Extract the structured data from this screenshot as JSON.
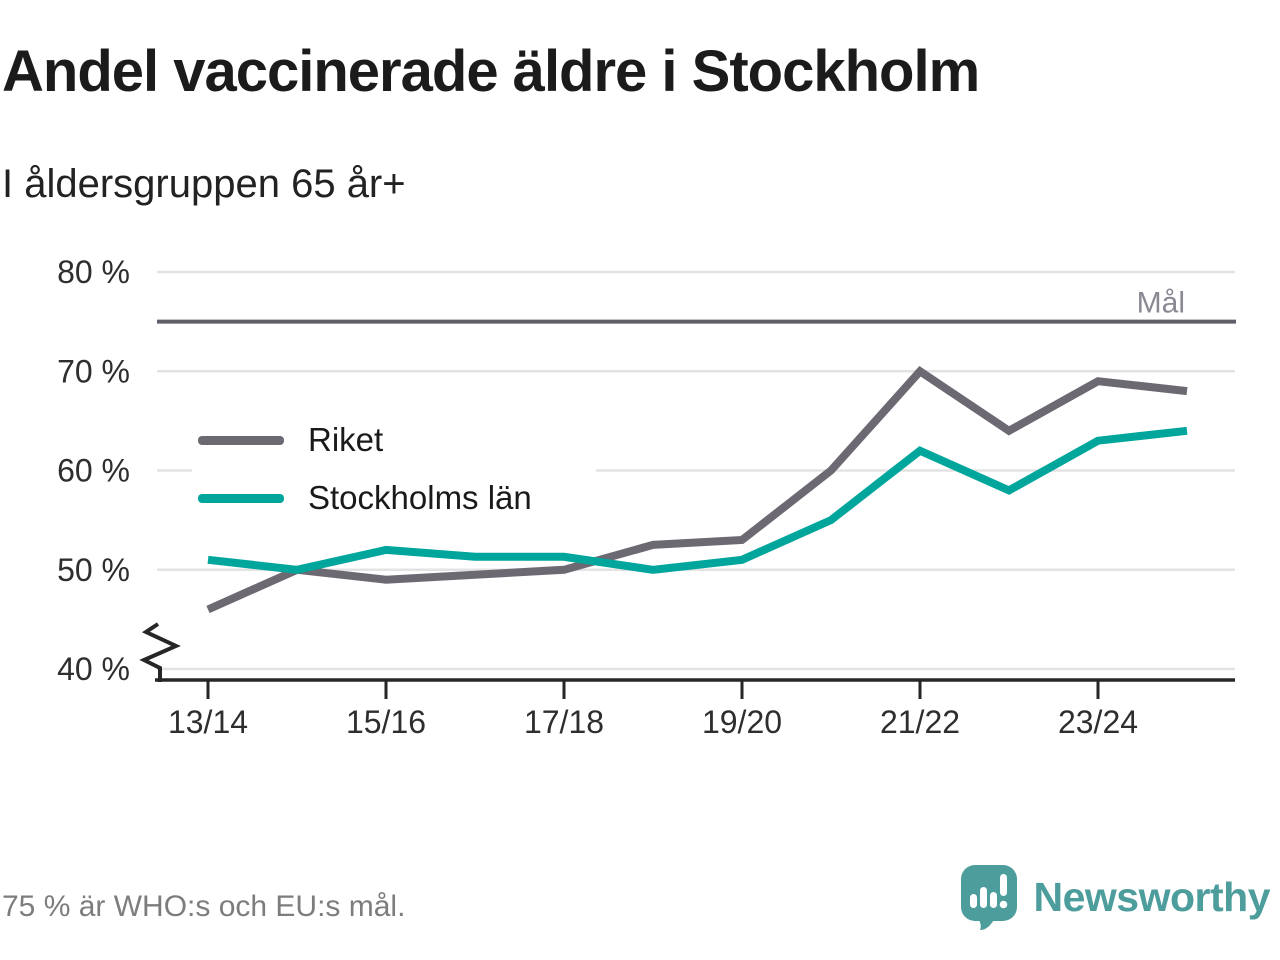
{
  "title": "Andel vaccinerade äldre i Stockholm",
  "subtitle": "I åldersgruppen 65 år+",
  "footer": "75 % är WHO:s och EU:s mål.",
  "brand": {
    "name": "Newsworthy",
    "color": "#4e9d9d",
    "icon": "bar-chart-speech-bubble-icon"
  },
  "chart_data": {
    "type": "line",
    "x": [
      "13/14",
      "14/15",
      "15/16",
      "16/17",
      "17/18",
      "18/19",
      "19/20",
      "20/21",
      "21/22",
      "22/23",
      "23/24",
      "24/25"
    ],
    "xtick_labels": [
      "13/14",
      "15/16",
      "17/18",
      "19/20",
      "21/22",
      "23/24"
    ],
    "series": [
      {
        "name": "Riket",
        "color": "#6d6973",
        "values": [
          46,
          50,
          49,
          49.5,
          50,
          52.5,
          53,
          60,
          70,
          64,
          69,
          68
        ]
      },
      {
        "name": "Stockholms län",
        "color": "#00a69c",
        "values": [
          51,
          50,
          52,
          51.3,
          51.3,
          50,
          51,
          55,
          62,
          58,
          63,
          64
        ]
      }
    ],
    "ylim": [
      40,
      80
    ],
    "yticks": [
      40,
      50,
      60,
      70,
      80
    ],
    "ytick_suffix": " %",
    "axis_break": true,
    "grid": "horizontal",
    "grid_color": "#e3e3e3",
    "axis_color": "#262626",
    "target_line": {
      "value": 75,
      "label": "Mål",
      "color": "#625e68"
    },
    "legend_position": "inside-left"
  }
}
